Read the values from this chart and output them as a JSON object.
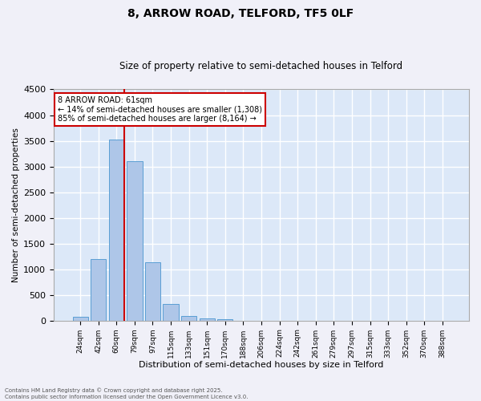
{
  "title": "8, ARROW ROAD, TELFORD, TF5 0LF",
  "subtitle": "Size of property relative to semi-detached houses in Telford",
  "xlabel": "Distribution of semi-detached houses by size in Telford",
  "ylabel": "Number of semi-detached properties",
  "categories": [
    "24sqm",
    "42sqm",
    "60sqm",
    "79sqm",
    "97sqm",
    "115sqm",
    "133sqm",
    "151sqm",
    "170sqm",
    "188sqm",
    "206sqm",
    "224sqm",
    "242sqm",
    "261sqm",
    "279sqm",
    "297sqm",
    "315sqm",
    "333sqm",
    "352sqm",
    "370sqm",
    "388sqm"
  ],
  "values": [
    75,
    1200,
    3520,
    3100,
    1140,
    330,
    95,
    45,
    25,
    0,
    0,
    0,
    0,
    0,
    0,
    0,
    0,
    0,
    0,
    0,
    0
  ],
  "bar_color": "#aec6e8",
  "bar_edge_color": "#5a9fd4",
  "vline_index": 2,
  "vline_color": "#cc0000",
  "annotation_text": "8 ARROW ROAD: 61sqm\n← 14% of semi-detached houses are smaller (1,308)\n85% of semi-detached houses are larger (8,164) →",
  "annotation_box_color": "#cc0000",
  "ylim": [
    0,
    4500
  ],
  "yticks": [
    0,
    500,
    1000,
    1500,
    2000,
    2500,
    3000,
    3500,
    4000,
    4500
  ],
  "background_color": "#dce8f8",
  "grid_color": "#ffffff",
  "fig_facecolor": "#f0f0f8",
  "footer_line1": "Contains HM Land Registry data © Crown copyright and database right 2025.",
  "footer_line2": "Contains public sector information licensed under the Open Government Licence v3.0."
}
